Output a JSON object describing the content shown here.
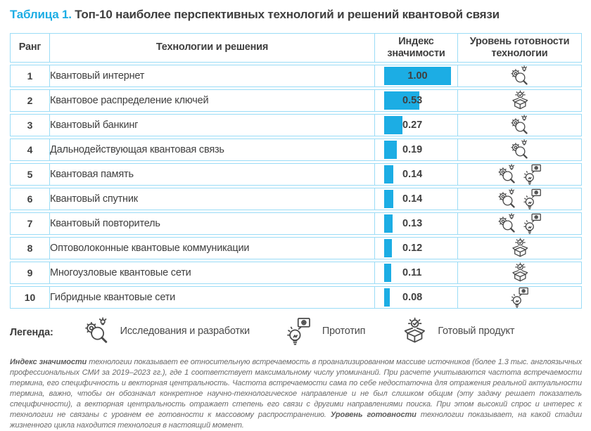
{
  "title": {
    "label": "Таблица 1.",
    "text": "Топ-10 наиболее перспективных технологий и решений квантовой связи"
  },
  "colors": {
    "accent": "#1cade4",
    "table_border": "#9bdcf6",
    "text_dark": "#3f3f3f",
    "footnote_gray": "#6a6a6a",
    "icon_stroke": "#4a4a4a"
  },
  "table": {
    "headers": {
      "rank": "Ранг",
      "technology": "Технологии и решения",
      "index": "Индекс значимости",
      "readiness": "Уровень готовности технологии"
    },
    "rows": [
      {
        "rank": "1",
        "technology": "Квантовый интернет",
        "value": 1.0,
        "value_label": "1.00",
        "readiness": [
          "research"
        ]
      },
      {
        "rank": "2",
        "technology": "Квантовое распределение ключей",
        "value": 0.53,
        "value_label": "0.53",
        "readiness": [
          "product"
        ]
      },
      {
        "rank": "3",
        "technology": "Квантовый банкинг",
        "value": 0.27,
        "value_label": "0.27",
        "readiness": [
          "research"
        ]
      },
      {
        "rank": "4",
        "technology": "Дальнодействующая квантовая связь",
        "value": 0.19,
        "value_label": "0.19",
        "readiness": [
          "research"
        ]
      },
      {
        "rank": "5",
        "technology": "Квантовая память",
        "value": 0.14,
        "value_label": "0.14",
        "readiness": [
          "research",
          "prototype"
        ]
      },
      {
        "rank": "6",
        "technology": "Квантовый спутник",
        "value": 0.14,
        "value_label": "0.14",
        "readiness": [
          "research",
          "prototype"
        ]
      },
      {
        "rank": "7",
        "technology": "Квантовый повторитель",
        "value": 0.13,
        "value_label": "0.13",
        "readiness": [
          "research",
          "prototype"
        ]
      },
      {
        "rank": "8",
        "technology": "Оптоволоконные квантовые коммуникации",
        "value": 0.12,
        "value_label": "0.12",
        "readiness": [
          "product"
        ]
      },
      {
        "rank": "9",
        "technology": "Многоузловые квантовые сети",
        "value": 0.11,
        "value_label": "0.11",
        "readiness": [
          "product"
        ]
      },
      {
        "rank": "10",
        "technology": "Гибридные квантовые сети",
        "value": 0.08,
        "value_label": "0.08",
        "readiness": [
          "prototype"
        ]
      }
    ]
  },
  "chart_data": {
    "type": "bar",
    "title": "Индекс значимости",
    "categories": [
      "Квантовый интернет",
      "Квантовое распределение ключей",
      "Квантовый банкинг",
      "Дальнодействующая квантовая связь",
      "Квантовая память",
      "Квантовый спутник",
      "Квантовый повторитель",
      "Оптоволоконные квантовые коммуникации",
      "Многоузловые квантовые сети",
      "Гибридные квантовые сети"
    ],
    "values": [
      1.0,
      0.53,
      0.27,
      0.19,
      0.14,
      0.14,
      0.13,
      0.12,
      0.11,
      0.08
    ],
    "xlabel": "",
    "ylabel": "Индекс значимости",
    "ylim": [
      0,
      1
    ]
  },
  "legend": {
    "label": "Легенда:",
    "items": [
      {
        "icon": "research-icon",
        "label": "Исследования и разработки"
      },
      {
        "icon": "prototype-icon",
        "label": "Прототип"
      },
      {
        "icon": "product-icon",
        "label": "Готовый продукт"
      }
    ]
  },
  "footnote": {
    "segments": [
      {
        "bold": true,
        "text": "Индекс значимости "
      },
      {
        "bold": false,
        "text": "технологии показывает ее относительную встречаемость в проанализированном массиве источников (более 1.3 тыс. англоязычных профессиональных СМИ за 2019–2023 гг.), где 1 соответствует максимальному числу упоминаний. При расчете учитываются частота встречаемости термина, его специфичность и векторная центральность. Частота встречаемости сама по себе недостаточна для отражения реальной актуальности термина, важно, чтобы он обозначал конкретное научно-технологическое направление и не был слишком общим (эту задачу решает показатель специфичности), а векторная центральность отражает степень его связи с другими направлениями поиска. При этом высокий спрос и интерес к технологии не связаны с уровнем ее готовности к массовому распространению. "
      },
      {
        "bold": true,
        "text": "Уровень готовности "
      },
      {
        "bold": false,
        "text": "технологии показывает, на какой стадии жизненного цикла находится технология в настоящий момент."
      }
    ]
  }
}
